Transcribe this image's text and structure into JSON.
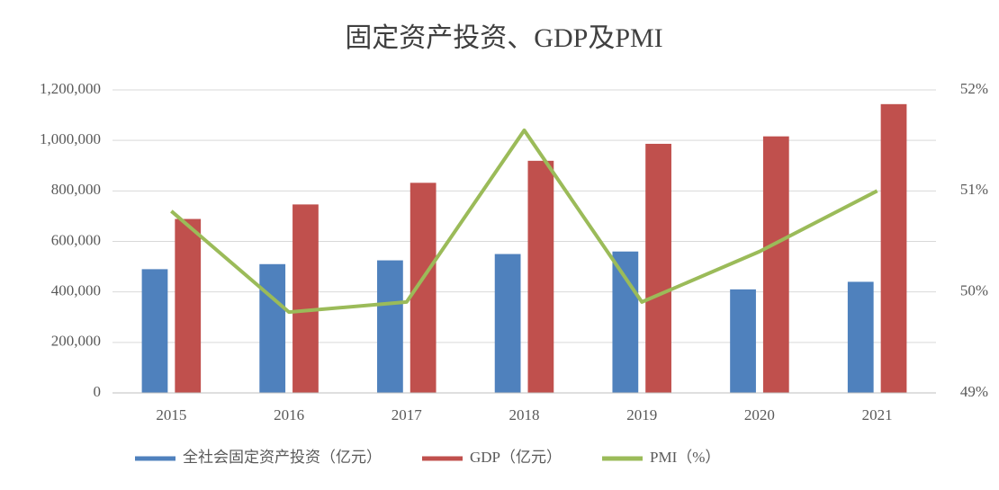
{
  "chart_data": {
    "type": "bar_line",
    "title": "固定资产投资、GDP及PMI",
    "categories": [
      "2015",
      "2016",
      "2017",
      "2018",
      "2019",
      "2020",
      "2021"
    ],
    "series": [
      {
        "name": "全社会固定资产投资（亿元）",
        "type": "bar",
        "color": "#4f81bd",
        "values": [
          490000,
          510000,
          525000,
          550000,
          560000,
          410000,
          440000
        ]
      },
      {
        "name": "GDP（亿元）",
        "type": "bar",
        "color": "#c0504d",
        "values": [
          688858,
          746395,
          832036,
          919281,
          986515,
          1015986,
          1143670
        ]
      },
      {
        "name": "PMI（%）",
        "type": "line",
        "axis": "y2",
        "color": "#9bbb59",
        "values": [
          50.8,
          49.8,
          49.9,
          51.6,
          49.9,
          50.4,
          51.0
        ]
      }
    ],
    "ylim": [
      0,
      1200000
    ],
    "yticks": [
      0,
      {
        "value": 200000,
        "label": "200,000"
      },
      {
        "value": 400000,
        "label": "400,000"
      },
      {
        "value": 600000,
        "label": "600,000"
      },
      {
        "value": 800000,
        "label": "800,000"
      },
      {
        "value": 1000000,
        "label": "1,000,000"
      },
      {
        "value": 1200000,
        "label": "1,200,000"
      }
    ],
    "y2lim": [
      49,
      52
    ],
    "y2ticks": [
      {
        "value": 49,
        "label": "49%"
      },
      {
        "value": 50,
        "label": "50%"
      },
      {
        "value": 51,
        "label": "51%"
      },
      {
        "value": 52,
        "label": "52%"
      }
    ],
    "grid": true,
    "legend": "bottom"
  }
}
